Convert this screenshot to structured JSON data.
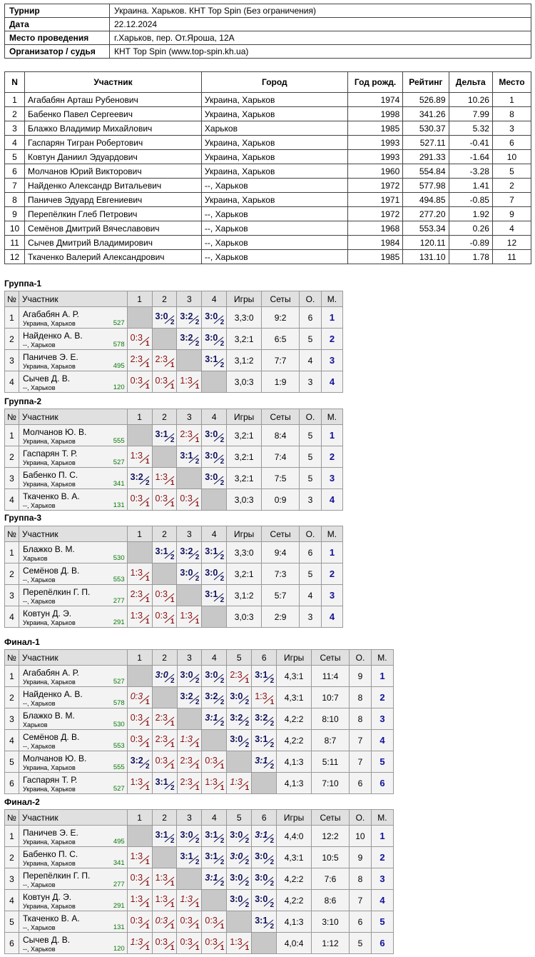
{
  "info": [
    {
      "label": "Турнир",
      "value": "Украина. Харьков. КНТ Top Spin (Без ограничения)"
    },
    {
      "label": "Дата",
      "value": "22.12.2024"
    },
    {
      "label": "Место проведения",
      "value": "г.Харьков, пер. От.Яроша, 12А"
    },
    {
      "label": "Организатор / судья",
      "value": "КНТ Top Spin (www.top-spin.kh.ua)"
    }
  ],
  "participants_headers": [
    "N",
    "Участник",
    "Город",
    "Год рожд.",
    "Рейтинг",
    "Дельта",
    "Место"
  ],
  "participants": [
    [
      "1",
      "Агабабян Арташ Рубенович",
      "Украина, Харьков",
      "1974",
      "526.89",
      "10.26",
      "1"
    ],
    [
      "2",
      "Бабенко Павел Сергеевич",
      "Украина, Харьков",
      "1998",
      "341.26",
      "7.99",
      "8"
    ],
    [
      "3",
      "Блажко Владимир Михайлович",
      "Харьков",
      "1985",
      "530.37",
      "5.32",
      "3"
    ],
    [
      "4",
      "Гаспарян Тигран Робертович",
      "Украина, Харьков",
      "1993",
      "527.11",
      "-0.41",
      "6"
    ],
    [
      "5",
      "Ковтун Даниил Эдуардович",
      "Украина, Харьков",
      "1993",
      "291.33",
      "-1.64",
      "10"
    ],
    [
      "6",
      "Молчанов Юрий Викторович",
      "Украина, Харьков",
      "1960",
      "554.84",
      "-3.28",
      "5"
    ],
    [
      "7",
      "Найденко Александр Витальевич",
      "--, Харьков",
      "1972",
      "577.98",
      "1.41",
      "2"
    ],
    [
      "8",
      "Паничев Эдуард Евгениевич",
      "Украина, Харьков",
      "1971",
      "494.85",
      "-0.85",
      "7"
    ],
    [
      "9",
      "Перепёлкин Глеб Петрович",
      "--, Харьков",
      "1972",
      "277.20",
      "1.92",
      "9"
    ],
    [
      "10",
      "Семёнов Дмитрий Вячеславович",
      "--, Харьков",
      "1968",
      "553.34",
      "0.26",
      "4"
    ],
    [
      "11",
      "Сычев Дмитрий Владимирович",
      "--, Харьков",
      "1984",
      "120.11",
      "-0.89",
      "12"
    ],
    [
      "12",
      "Ткаченко Валерий Александрович",
      "--, Харьков",
      "1985",
      "131.10",
      "1.78",
      "11"
    ]
  ],
  "group_headers": {
    "n": "№",
    "name": "Участник",
    "games": "Игры",
    "sets": "Сеты",
    "points": "О.",
    "place": "М."
  },
  "groups": [
    {
      "title": "Группа-1",
      "size": 4,
      "players": [
        {
          "n": "1",
          "name": "Агабабян А. Р.",
          "city": "Украина, Харьков",
          "rating": "527",
          "cells": [
            null,
            {
              "s": "3:0",
              "p": "2"
            },
            {
              "s": "3:2",
              "p": "2"
            },
            {
              "s": "3:0",
              "p": "2"
            }
          ],
          "games": "3,3:0",
          "sets": "9:2",
          "points": "6",
          "place": "1"
        },
        {
          "n": "2",
          "name": "Найденко А. В.",
          "city": "--, Харьков",
          "rating": "578",
          "cells": [
            {
              "s": "0:3",
              "p": "1"
            },
            null,
            {
              "s": "3:2",
              "p": "2"
            },
            {
              "s": "3:0",
              "p": "2"
            }
          ],
          "games": "3,2:1",
          "sets": "6:5",
          "points": "5",
          "place": "2"
        },
        {
          "n": "3",
          "name": "Паничев Э. Е.",
          "city": "Украина, Харьков",
          "rating": "495",
          "cells": [
            {
              "s": "2:3",
              "p": "1"
            },
            {
              "s": "2:3",
              "p": "1"
            },
            null,
            {
              "s": "3:1",
              "p": "2"
            }
          ],
          "games": "3,1:2",
          "sets": "7:7",
          "points": "4",
          "place": "3"
        },
        {
          "n": "4",
          "name": "Сычев Д. В.",
          "city": "--, Харьков",
          "rating": "120",
          "cells": [
            {
              "s": "0:3",
              "p": "1"
            },
            {
              "s": "0:3",
              "p": "1"
            },
            {
              "s": "1:3",
              "p": "1"
            },
            null
          ],
          "games": "3,0:3",
          "sets": "1:9",
          "points": "3",
          "place": "4"
        }
      ]
    },
    {
      "title": "Группа-2",
      "size": 4,
      "players": [
        {
          "n": "1",
          "name": "Молчанов Ю. В.",
          "city": "Украина, Харьков",
          "rating": "555",
          "cells": [
            null,
            {
              "s": "3:1",
              "p": "2"
            },
            {
              "s": "2:3",
              "p": "1"
            },
            {
              "s": "3:0",
              "p": "2"
            }
          ],
          "games": "3,2:1",
          "sets": "8:4",
          "points": "5",
          "place": "1"
        },
        {
          "n": "2",
          "name": "Гаспарян Т. Р.",
          "city": "Украина, Харьков",
          "rating": "527",
          "cells": [
            {
              "s": "1:3",
              "p": "1"
            },
            null,
            {
              "s": "3:1",
              "p": "2"
            },
            {
              "s": "3:0",
              "p": "2"
            }
          ],
          "games": "3,2:1",
          "sets": "7:4",
          "points": "5",
          "place": "2"
        },
        {
          "n": "3",
          "name": "Бабенко П. С.",
          "city": "Украина, Харьков",
          "rating": "341",
          "cells": [
            {
              "s": "3:2",
              "p": "2"
            },
            {
              "s": "1:3",
              "p": "1"
            },
            null,
            {
              "s": "3:0",
              "p": "2"
            }
          ],
          "games": "3,2:1",
          "sets": "7:5",
          "points": "5",
          "place": "3"
        },
        {
          "n": "4",
          "name": "Ткаченко В. А.",
          "city": "--, Харьков",
          "rating": "131",
          "cells": [
            {
              "s": "0:3",
              "p": "1"
            },
            {
              "s": "0:3",
              "p": "1"
            },
            {
              "s": "0:3",
              "p": "1"
            },
            null
          ],
          "games": "3,0:3",
          "sets": "0:9",
          "points": "3",
          "place": "4"
        }
      ]
    },
    {
      "title": "Группа-3",
      "size": 4,
      "players": [
        {
          "n": "1",
          "name": "Блажко В. М.",
          "city": "Харьков",
          "rating": "530",
          "cells": [
            null,
            {
              "s": "3:1",
              "p": "2"
            },
            {
              "s": "3:2",
              "p": "2"
            },
            {
              "s": "3:1",
              "p": "2"
            }
          ],
          "games": "3,3:0",
          "sets": "9:4",
          "points": "6",
          "place": "1"
        },
        {
          "n": "2",
          "name": "Семёнов Д. В.",
          "city": "--, Харьков",
          "rating": "553",
          "cells": [
            {
              "s": "1:3",
              "p": "1"
            },
            null,
            {
              "s": "3:0",
              "p": "2"
            },
            {
              "s": "3:0",
              "p": "2"
            }
          ],
          "games": "3,2:1",
          "sets": "7:3",
          "points": "5",
          "place": "2"
        },
        {
          "n": "3",
          "name": "Перепёлкин Г. П.",
          "city": "--, Харьков",
          "rating": "277",
          "cells": [
            {
              "s": "2:3",
              "p": "1"
            },
            {
              "s": "0:3",
              "p": "1"
            },
            null,
            {
              "s": "3:1",
              "p": "2"
            }
          ],
          "games": "3,1:2",
          "sets": "5:7",
          "points": "4",
          "place": "3"
        },
        {
          "n": "4",
          "name": "Ковтун Д. Э.",
          "city": "Украина, Харьков",
          "rating": "291",
          "cells": [
            {
              "s": "1:3",
              "p": "1"
            },
            {
              "s": "0:3",
              "p": "1"
            },
            {
              "s": "1:3",
              "p": "1"
            },
            null
          ],
          "games": "3,0:3",
          "sets": "2:9",
          "points": "3",
          "place": "4"
        }
      ]
    },
    {
      "title": "Финал-1",
      "size": 6,
      "players": [
        {
          "n": "1",
          "name": "Агабабян А. Р.",
          "city": "Украина, Харьков",
          "rating": "527",
          "cells": [
            null,
            {
              "s": "3:0",
              "p": "2",
              "i": 1
            },
            {
              "s": "3:0",
              "p": "2"
            },
            {
              "s": "3:0",
              "p": "2"
            },
            {
              "s": "2:3",
              "p": "1"
            },
            {
              "s": "3:1",
              "p": "2"
            }
          ],
          "games": "4,3:1",
          "sets": "11:4",
          "points": "9",
          "place": "1"
        },
        {
          "n": "2",
          "name": "Найденко А. В.",
          "city": "--, Харьков",
          "rating": "578",
          "cells": [
            {
              "s": "0:3",
              "p": "1",
              "i": 1
            },
            null,
            {
              "s": "3:2",
              "p": "2"
            },
            {
              "s": "3:2",
              "p": "2"
            },
            {
              "s": "3:0",
              "p": "2"
            },
            {
              "s": "1:3",
              "p": "1"
            }
          ],
          "games": "4,3:1",
          "sets": "10:7",
          "points": "8",
          "place": "2"
        },
        {
          "n": "3",
          "name": "Блажко В. М.",
          "city": "Харьков",
          "rating": "530",
          "cells": [
            {
              "s": "0:3",
              "p": "1"
            },
            {
              "s": "2:3",
              "p": "1"
            },
            null,
            {
              "s": "3:1",
              "p": "2",
              "i": 1
            },
            {
              "s": "3:2",
              "p": "2"
            },
            {
              "s": "3:2",
              "p": "2"
            }
          ],
          "games": "4,2:2",
          "sets": "8:10",
          "points": "8",
          "place": "3"
        },
        {
          "n": "4",
          "name": "Семёнов Д. В.",
          "city": "--, Харьков",
          "rating": "553",
          "cells": [
            {
              "s": "0:3",
              "p": "1"
            },
            {
              "s": "2:3",
              "p": "1"
            },
            {
              "s": "1:3",
              "p": "1",
              "i": 1
            },
            null,
            {
              "s": "3:0",
              "p": "2"
            },
            {
              "s": "3:1",
              "p": "2"
            }
          ],
          "games": "4,2:2",
          "sets": "8:7",
          "points": "7",
          "place": "4"
        },
        {
          "n": "5",
          "name": "Молчанов Ю. В.",
          "city": "Украина, Харьков",
          "rating": "555",
          "cells": [
            {
              "s": "3:2",
              "p": "2"
            },
            {
              "s": "0:3",
              "p": "1"
            },
            {
              "s": "2:3",
              "p": "1"
            },
            {
              "s": "0:3",
              "p": "1"
            },
            null,
            {
              "s": "3:1",
              "p": "2",
              "i": 1
            }
          ],
          "games": "4,1:3",
          "sets": "5:11",
          "points": "7",
          "place": "5"
        },
        {
          "n": "6",
          "name": "Гаспарян Т. Р.",
          "city": "Украина, Харьков",
          "rating": "527",
          "cells": [
            {
              "s": "1:3",
              "p": "1"
            },
            {
              "s": "3:1",
              "p": "2"
            },
            {
              "s": "2:3",
              "p": "1"
            },
            {
              "s": "1:3",
              "p": "1"
            },
            {
              "s": "1:3",
              "p": "1",
              "i": 1
            },
            null
          ],
          "games": "4,1:3",
          "sets": "7:10",
          "points": "6",
          "place": "6"
        }
      ]
    },
    {
      "title": "Финал-2",
      "size": 6,
      "players": [
        {
          "n": "1",
          "name": "Паничев Э. Е.",
          "city": "Украина, Харьков",
          "rating": "495",
          "cells": [
            null,
            {
              "s": "3:1",
              "p": "2"
            },
            {
              "s": "3:0",
              "p": "2"
            },
            {
              "s": "3:1",
              "p": "2"
            },
            {
              "s": "3:0",
              "p": "2"
            },
            {
              "s": "3:1",
              "p": "2",
              "i": 1
            }
          ],
          "games": "4,4:0",
          "sets": "12:2",
          "points": "10",
          "place": "1"
        },
        {
          "n": "2",
          "name": "Бабенко П. С.",
          "city": "Украина, Харьков",
          "rating": "341",
          "cells": [
            {
              "s": "1:3",
              "p": "1"
            },
            null,
            {
              "s": "3:1",
              "p": "2"
            },
            {
              "s": "3:1",
              "p": "2"
            },
            {
              "s": "3:0",
              "p": "2",
              "i": 1
            },
            {
              "s": "3:0",
              "p": "2"
            }
          ],
          "games": "4,3:1",
          "sets": "10:5",
          "points": "9",
          "place": "2"
        },
        {
          "n": "3",
          "name": "Перепёлкин Г. П.",
          "city": "--, Харьков",
          "rating": "277",
          "cells": [
            {
              "s": "0:3",
              "p": "1"
            },
            {
              "s": "1:3",
              "p": "1"
            },
            null,
            {
              "s": "3:1",
              "p": "2",
              "i": 1
            },
            {
              "s": "3:0",
              "p": "2"
            },
            {
              "s": "3:0",
              "p": "2"
            }
          ],
          "games": "4,2:2",
          "sets": "7:6",
          "points": "8",
          "place": "3"
        },
        {
          "n": "4",
          "name": "Ковтун Д. Э.",
          "city": "Украина, Харьков",
          "rating": "291",
          "cells": [
            {
              "s": "1:3",
              "p": "1"
            },
            {
              "s": "1:3",
              "p": "1"
            },
            {
              "s": "1:3",
              "p": "1",
              "i": 1
            },
            null,
            {
              "s": "3:0",
              "p": "2"
            },
            {
              "s": "3:0",
              "p": "2"
            }
          ],
          "games": "4,2:2",
          "sets": "8:6",
          "points": "7",
          "place": "4"
        },
        {
          "n": "5",
          "name": "Ткаченко В. А.",
          "city": "--, Харьков",
          "rating": "131",
          "cells": [
            {
              "s": "0:3",
              "p": "1"
            },
            {
              "s": "0:3",
              "p": "1",
              "i": 1
            },
            {
              "s": "0:3",
              "p": "1"
            },
            {
              "s": "0:3",
              "p": "1"
            },
            null,
            {
              "s": "3:1",
              "p": "2"
            }
          ],
          "games": "4,1:3",
          "sets": "3:10",
          "points": "6",
          "place": "5"
        },
        {
          "n": "6",
          "name": "Сычев Д. В.",
          "city": "--, Харьков",
          "rating": "120",
          "cells": [
            {
              "s": "1:3",
              "p": "1",
              "i": 1
            },
            {
              "s": "0:3",
              "p": "1"
            },
            {
              "s": "0:3",
              "p": "1"
            },
            {
              "s": "0:3",
              "p": "1"
            },
            {
              "s": "1:3",
              "p": "1"
            },
            null
          ],
          "games": "4,0:4",
          "sets": "1:12",
          "points": "5",
          "place": "6"
        }
      ]
    }
  ]
}
